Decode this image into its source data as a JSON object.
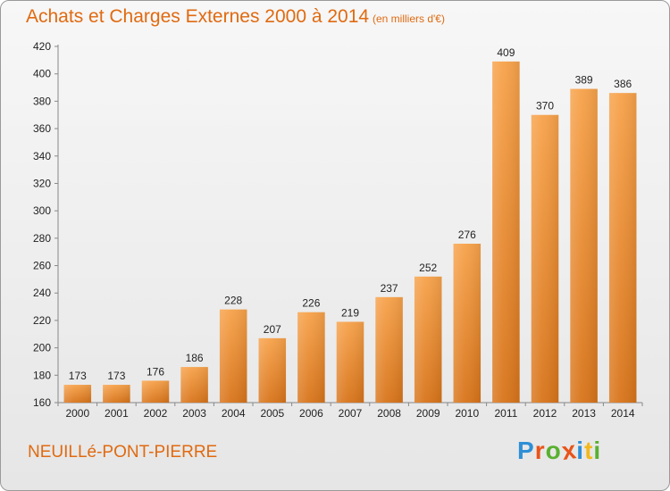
{
  "header": {
    "title": "Achats et Charges Externes 2000 à 2014",
    "subtitle": "(en milliers d'€)"
  },
  "footer": {
    "commune": "NEUILLé-PONT-PIERRE",
    "logo_letters": [
      "P",
      "r",
      "o",
      "x",
      "i",
      "t",
      "i"
    ],
    "logo_colors": [
      "#2e8fd6",
      "#e8541a",
      "#59b030",
      "#e8541a",
      "#2e8fd6",
      "#f2b81c",
      "#59b030"
    ]
  },
  "chart_data": {
    "type": "bar",
    "categories": [
      "2000",
      "2001",
      "2002",
      "2003",
      "2004",
      "2005",
      "2006",
      "2007",
      "2008",
      "2009",
      "2010",
      "2011",
      "2012",
      "2013",
      "2014"
    ],
    "values": [
      173,
      173,
      176,
      186,
      228,
      207,
      226,
      219,
      237,
      252,
      276,
      409,
      370,
      389,
      386
    ],
    "title": "Achats et Charges Externes 2000 à 2014",
    "xlabel": "",
    "ylabel": "",
    "ylim": [
      160,
      420
    ],
    "yticks": [
      160,
      180,
      200,
      220,
      240,
      260,
      280,
      300,
      320,
      340,
      360,
      380,
      400,
      420
    ],
    "grid": false,
    "bar_color": "#f39c40",
    "bar_color_dark": "#d9781c"
  }
}
